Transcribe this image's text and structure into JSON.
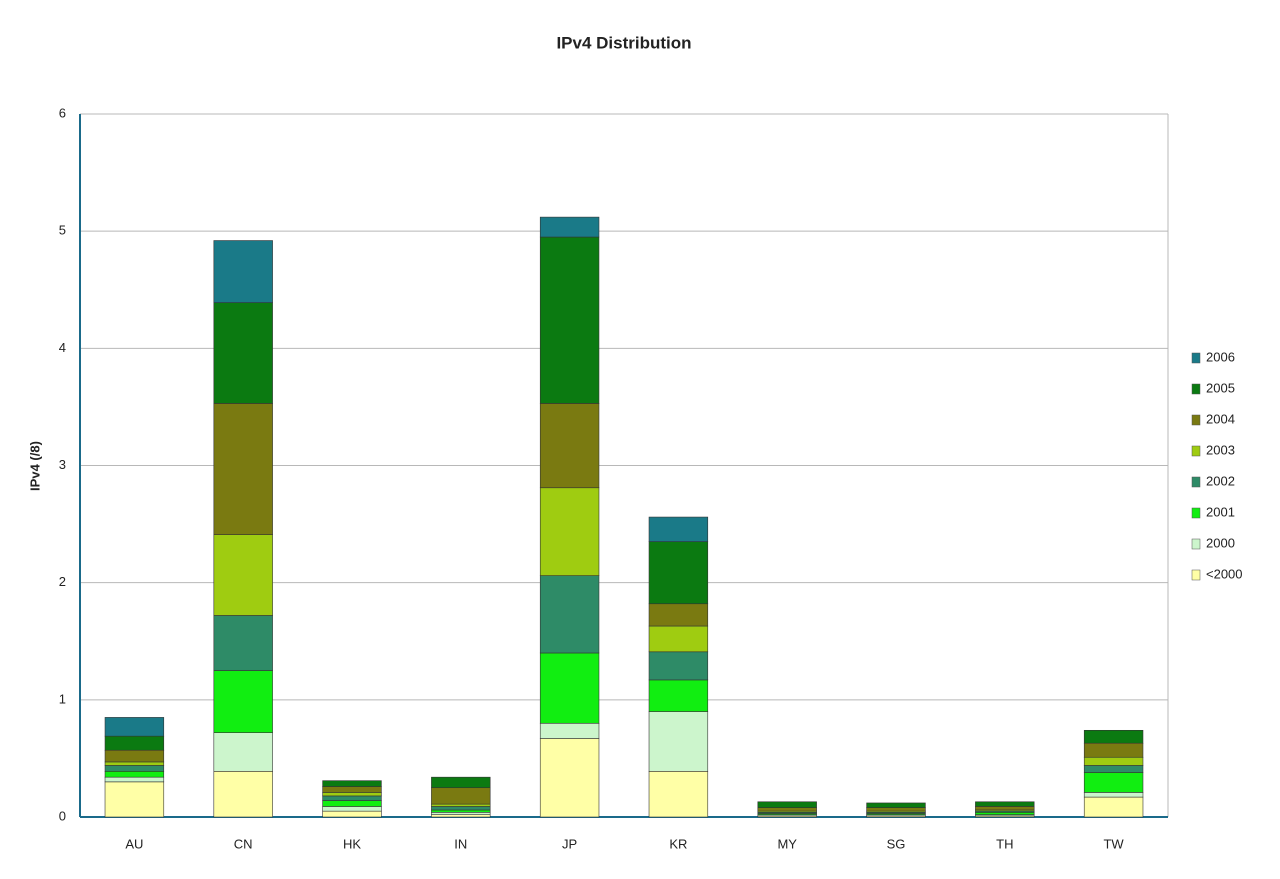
{
  "chart_data": {
    "type": "stacked-bar",
    "title": "IPv4 Distribution",
    "y_label": "IPv4 (/8)",
    "categories": [
      "AU",
      "CN",
      "HK",
      "IN",
      "JP",
      "KR",
      "MY",
      "SG",
      "TH",
      "TW"
    ],
    "series": [
      {
        "name": "<2000",
        "color": "#ffffa6",
        "values": [
          0.3,
          0.39,
          0.05,
          0.02,
          0.67,
          0.39,
          0.01,
          0.01,
          0.01,
          0.17
        ]
      },
      {
        "name": "2000",
        "color": "#ccf5cc",
        "values": [
          0.04,
          0.33,
          0.04,
          0.02,
          0.13,
          0.51,
          0.01,
          0.01,
          0.01,
          0.04
        ]
      },
      {
        "name": "2001",
        "color": "#11ee11",
        "values": [
          0.05,
          0.53,
          0.05,
          0.02,
          0.6,
          0.27,
          0.01,
          0.01,
          0.02,
          0.17
        ]
      },
      {
        "name": "2002",
        "color": "#2e8b67",
        "values": [
          0.05,
          0.47,
          0.04,
          0.03,
          0.66,
          0.24,
          0.01,
          0.01,
          0.01,
          0.06
        ]
      },
      {
        "name": "2003",
        "color": "#9fcc11",
        "values": [
          0.03,
          0.69,
          0.03,
          0.02,
          0.75,
          0.22,
          0.01,
          0.01,
          0.01,
          0.07
        ]
      },
      {
        "name": "2004",
        "color": "#7a7a11",
        "values": [
          0.1,
          1.12,
          0.05,
          0.14,
          0.72,
          0.19,
          0.03,
          0.03,
          0.03,
          0.12
        ]
      },
      {
        "name": "2005",
        "color": "#0b7a11",
        "values": [
          0.12,
          0.86,
          0.05,
          0.09,
          1.42,
          0.53,
          0.05,
          0.04,
          0.04,
          0.11
        ]
      },
      {
        "name": "2006",
        "color": "#1a7a88",
        "values": [
          0.16,
          0.53,
          0.0,
          0.0,
          0.17,
          0.21,
          0.0,
          0.0,
          0.0,
          0.0
        ]
      }
    ],
    "ylim": [
      0,
      6
    ],
    "yticks": [
      0,
      1,
      2,
      3,
      4,
      5,
      6
    ],
    "grid": true
  }
}
